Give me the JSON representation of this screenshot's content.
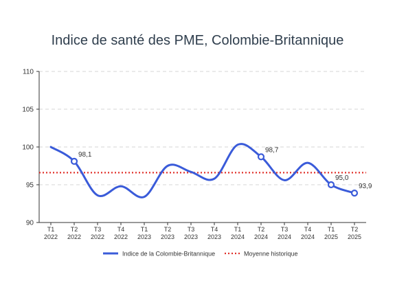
{
  "chart_data": {
    "type": "line",
    "title": "Indice de santé des PME, Colombie-Britannique",
    "xlabel": "",
    "ylabel": "",
    "ylim": [
      90,
      110
    ],
    "yticks": [
      90,
      95,
      100,
      105,
      110
    ],
    "grid": "horizontal dashed",
    "legend_position": "bottom",
    "categories": [
      [
        "T1",
        "2022"
      ],
      [
        "T2",
        "2022"
      ],
      [
        "T3",
        "2022"
      ],
      [
        "T4",
        "2022"
      ],
      [
        "T1",
        "2023"
      ],
      [
        "T2",
        "2023"
      ],
      [
        "T3",
        "2023"
      ],
      [
        "T4",
        "2023"
      ],
      [
        "T1",
        "2024"
      ],
      [
        "T2",
        "2024"
      ],
      [
        "T3",
        "2024"
      ],
      [
        "T4",
        "2024"
      ],
      [
        "T1",
        "2025"
      ],
      [
        "T2",
        "2025"
      ]
    ],
    "series": [
      {
        "name": "Indice de la Colombie-Britannique",
        "color": "#3a5bd9",
        "style": "solid-smooth",
        "values": [
          100.0,
          98.1,
          93.6,
          94.8,
          93.4,
          97.5,
          96.7,
          95.8,
          100.3,
          98.7,
          95.6,
          97.9,
          95.0,
          93.9
        ],
        "labeled_points": [
          {
            "index": 1,
            "label": "98,1"
          },
          {
            "index": 9,
            "label": "98,7"
          },
          {
            "index": 12,
            "label": "95,0"
          },
          {
            "index": 13,
            "label": "93,9"
          }
        ]
      },
      {
        "name": "Moyenne historique",
        "color": "#e0302a",
        "style": "dotted",
        "value": 96.6
      }
    ]
  }
}
